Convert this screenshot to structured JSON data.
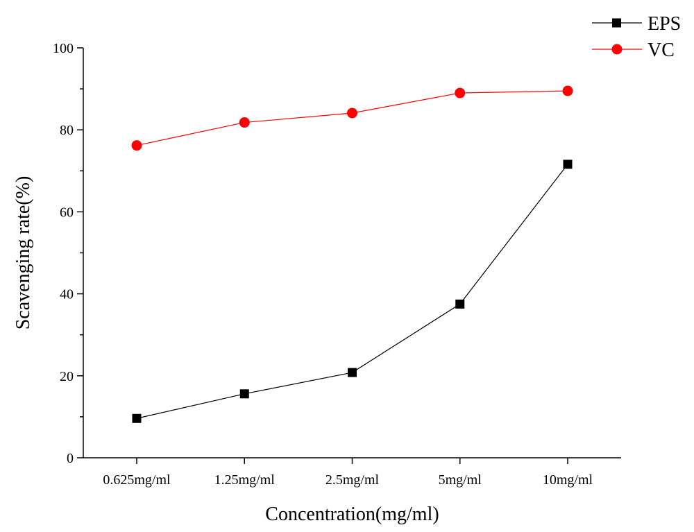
{
  "chart_data": {
    "type": "line",
    "categories": [
      "0.625mg/ml",
      "1.25mg/ml",
      "2.5mg/ml",
      "5mg/ml",
      "10mg/ml"
    ],
    "series": [
      {
        "name": "EPS",
        "values": [
          9.6,
          15.6,
          20.8,
          37.5,
          71.6
        ],
        "color": "#000000",
        "marker": "square"
      },
      {
        "name": "VC",
        "values": [
          76.2,
          81.8,
          84.1,
          89.0,
          89.5
        ],
        "color": "#ff0000",
        "marker": "circle"
      }
    ],
    "xlabel": "Concentration(mg/ml)",
    "ylabel": "Scavenging rate(%)",
    "ylim": [
      0,
      100
    ],
    "yticks": [
      "0",
      "20",
      "40",
      "60",
      "80",
      "100"
    ],
    "grid": false,
    "legend_position": "top-right"
  }
}
